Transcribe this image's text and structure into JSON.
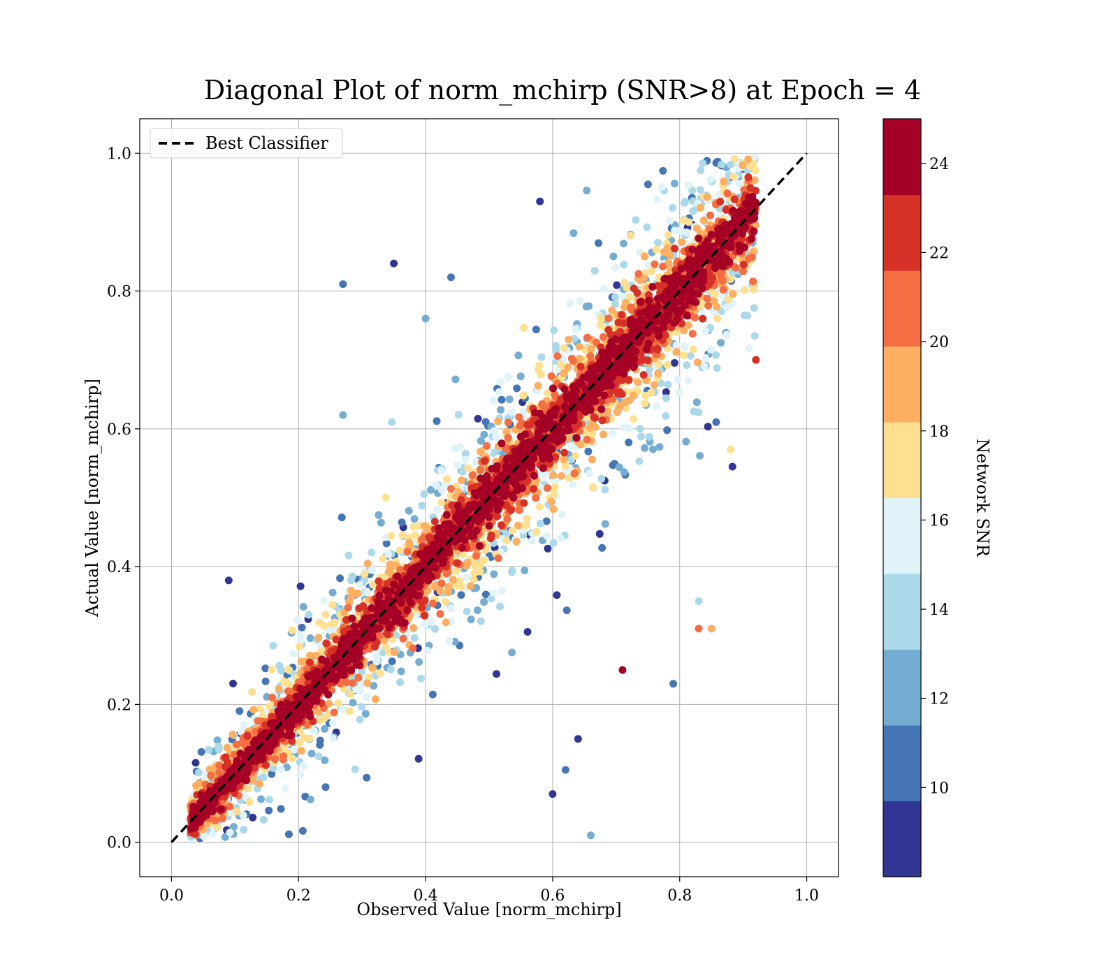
{
  "chart_data": {
    "type": "scatter",
    "title": "Diagonal Plot of norm_mchirp (SNR>8) at Epoch = 4",
    "xlabel": "Observed Value [norm_mchirp]",
    "ylabel": "Actual Value [norm_mchirp]",
    "xlim": [
      -0.05,
      1.05
    ],
    "ylim": [
      -0.05,
      1.05
    ],
    "x_ticks": [
      "0.0",
      "0.2",
      "0.4",
      "0.6",
      "0.8",
      "1.0"
    ],
    "y_ticks": [
      "0.0",
      "0.2",
      "0.4",
      "0.6",
      "0.8",
      "1.0"
    ],
    "grid": true,
    "legend": {
      "location": "upper-left",
      "entries": [
        {
          "label": "Best Classifier",
          "style": "dashed",
          "color": "#000000"
        }
      ]
    },
    "reference_line": {
      "label": "Best Classifier",
      "x": [
        0.0,
        1.0
      ],
      "y": [
        0.0,
        1.0
      ],
      "style": "dashed",
      "color": "#000000"
    },
    "colorbar": {
      "label": "Network SNR",
      "range": [
        8,
        25
      ],
      "tick_labels": [
        "10",
        "12",
        "14",
        "16",
        "18",
        "20",
        "22",
        "24"
      ],
      "tick_values": [
        10,
        12,
        14,
        16,
        18,
        20,
        22,
        24
      ],
      "colors": [
        "#313695",
        "#4575b4",
        "#74add1",
        "#abd9e9",
        "#e0f3f8",
        "#fee090",
        "#fdae61",
        "#f46d43",
        "#d73027",
        "#a50026"
      ]
    },
    "scatter_summary": "dense cloud of points scattered around the diagonal; higher-SNR points concentrate near the diagonal, low-SNR points are spread wider",
    "sample_points": [
      {
        "x": 0.35,
        "y": 0.84,
        "snr": 9
      },
      {
        "x": 0.27,
        "y": 0.81,
        "snr": 11
      },
      {
        "x": 0.58,
        "y": 0.93,
        "snr": 9
      },
      {
        "x": 0.27,
        "y": 0.62,
        "snr": 12
      },
      {
        "x": 0.09,
        "y": 0.38,
        "snr": 9
      },
      {
        "x": 0.71,
        "y": 0.25,
        "snr": 25
      },
      {
        "x": 0.79,
        "y": 0.23,
        "snr": 10
      },
      {
        "x": 0.83,
        "y": 0.31,
        "snr": 20
      },
      {
        "x": 0.85,
        "y": 0.31,
        "snr": 19
      },
      {
        "x": 0.83,
        "y": 0.35,
        "snr": 14
      },
      {
        "x": 0.66,
        "y": 0.01,
        "snr": 12
      },
      {
        "x": 0.6,
        "y": 0.07,
        "snr": 9
      },
      {
        "x": 0.64,
        "y": 0.15,
        "snr": 9
      },
      {
        "x": 0.88,
        "y": 0.57,
        "snr": 17
      },
      {
        "x": 0.92,
        "y": 0.7,
        "snr": 23
      },
      {
        "x": 0.4,
        "y": 0.76,
        "snr": 13
      },
      {
        "x": 0.44,
        "y": 0.82,
        "snr": 11
      }
    ]
  }
}
